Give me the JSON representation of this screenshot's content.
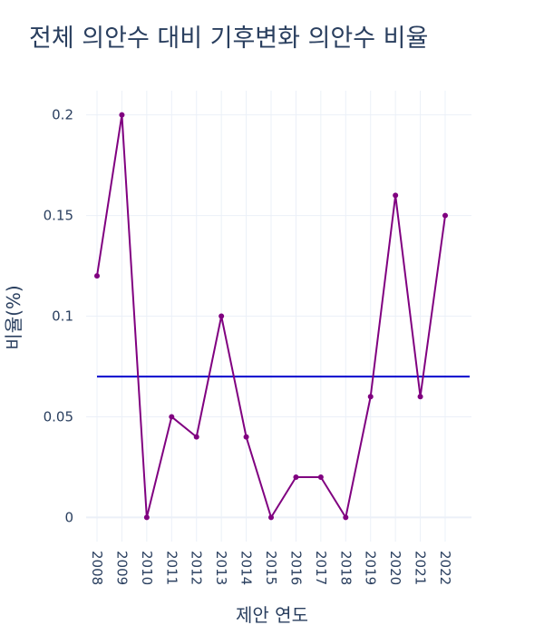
{
  "chart_data": {
    "type": "line",
    "title": "전체 의안수 대비 기후변화 의안수 비율",
    "xlabel": "제안 연도",
    "ylabel": "비율(%)",
    "categories": [
      "2008",
      "2009",
      "2010",
      "2011",
      "2012",
      "2013",
      "2014",
      "2015",
      "2016",
      "2017",
      "2018",
      "2019",
      "2020",
      "2021",
      "2022"
    ],
    "series": [
      {
        "values": [
          0.12,
          0.2,
          0,
          0.05,
          0.04,
          0.1,
          0.04,
          0,
          0.02,
          0.02,
          0,
          0.06,
          0.16,
          0.06,
          0.15
        ],
        "color": "#800080"
      }
    ],
    "reference_line": {
      "value": 0.07,
      "color": "#0000cd"
    },
    "yticks": [
      0,
      0.05,
      0.1,
      0.15,
      0.2
    ],
    "ytick_labels": [
      "0",
      "0.05",
      "0.1",
      "0.15",
      "0.2"
    ],
    "ylim": [
      -0.012,
      0.212
    ],
    "grid": true,
    "grid_color": "#ebf0f8",
    "zero_line_color": "#ebf0f8"
  }
}
